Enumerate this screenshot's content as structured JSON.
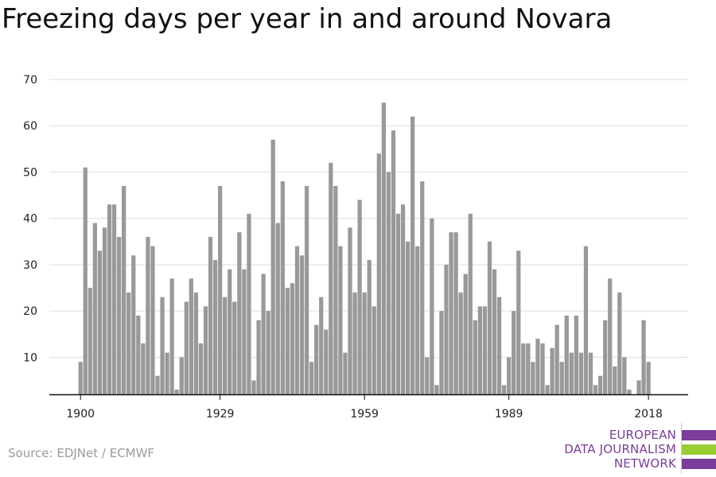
{
  "title": "Freezing days per year in and around Novara",
  "source": "Source: EDJNet / ECMWF",
  "logo": {
    "lines": [
      "EUROPEAN",
      "DATA JOURNALISM",
      "NETWORK"
    ],
    "colors": [
      "#7a3d9a",
      "#9acd32",
      "#7a3d9a"
    ]
  },
  "colors": {
    "bar": "#999999",
    "grid": "#dddddd",
    "axis": "#111111",
    "text": "#222222"
  },
  "chart_data": {
    "type": "bar",
    "title": "Freezing days per year in and around Novara",
    "xlabel": "",
    "ylabel": "",
    "ylim": [
      2,
      70
    ],
    "yticks": [
      10,
      20,
      30,
      40,
      50,
      60,
      70
    ],
    "xticks": [
      1900,
      1929,
      1959,
      1989,
      2018
    ],
    "grid": true,
    "years": [
      1900,
      1901,
      1902,
      1903,
      1904,
      1905,
      1906,
      1907,
      1908,
      1909,
      1910,
      1911,
      1912,
      1913,
      1914,
      1915,
      1916,
      1917,
      1918,
      1919,
      1920,
      1921,
      1922,
      1923,
      1924,
      1925,
      1926,
      1927,
      1928,
      1929,
      1930,
      1931,
      1932,
      1933,
      1934,
      1935,
      1936,
      1937,
      1938,
      1939,
      1940,
      1941,
      1942,
      1943,
      1944,
      1945,
      1946,
      1947,
      1948,
      1949,
      1950,
      1951,
      1952,
      1953,
      1954,
      1955,
      1956,
      1957,
      1958,
      1959,
      1960,
      1961,
      1962,
      1963,
      1964,
      1965,
      1966,
      1967,
      1968,
      1969,
      1970,
      1971,
      1972,
      1973,
      1974,
      1975,
      1976,
      1977,
      1978,
      1979,
      1980,
      1981,
      1982,
      1983,
      1984,
      1985,
      1986,
      1987,
      1988,
      1989,
      1990,
      1991,
      1992,
      1993,
      1994,
      1995,
      1996,
      1997,
      1998,
      1999,
      2000,
      2001,
      2002,
      2003,
      2004,
      2005,
      2006,
      2007,
      2008,
      2009,
      2010,
      2011,
      2012,
      2013,
      2014,
      2015,
      2016,
      2017,
      2018
    ],
    "values": [
      9,
      51,
      25,
      39,
      33,
      38,
      43,
      43,
      36,
      47,
      24,
      32,
      19,
      13,
      36,
      34,
      6,
      23,
      11,
      27,
      3,
      10,
      22,
      27,
      24,
      13,
      21,
      36,
      31,
      47,
      23,
      29,
      22,
      37,
      29,
      41,
      5,
      18,
      28,
      20,
      57,
      39,
      48,
      25,
      26,
      34,
      32,
      47,
      9,
      17,
      23,
      16,
      52,
      47,
      34,
      11,
      38,
      24,
      44,
      24,
      31,
      21,
      54,
      65,
      50,
      59,
      41,
      43,
      35,
      62,
      34,
      48,
      10,
      40,
      4,
      20,
      30,
      37,
      37,
      24,
      28,
      41,
      18,
      21,
      21,
      35,
      29,
      23,
      4,
      10,
      20,
      33,
      13,
      13,
      9,
      14,
      13,
      4,
      12,
      17,
      9,
      19,
      11,
      19,
      11,
      34,
      11,
      4,
      6,
      18,
      27,
      8,
      24,
      10,
      3,
      2,
      5,
      18,
      9
    ]
  }
}
